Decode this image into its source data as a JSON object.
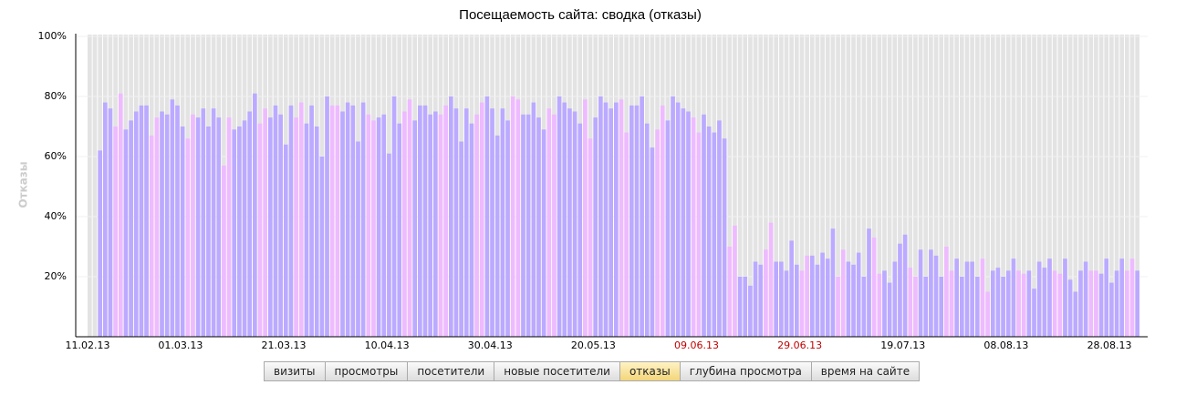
{
  "chart_data": {
    "type": "bar",
    "title": "Посещаемость сайта: сводка (отказы)",
    "y_label": "Отказы",
    "categories": [
      "11.02.13",
      null,
      null,
      null,
      null,
      null,
      null,
      null,
      null,
      null,
      null,
      null,
      null,
      null,
      null,
      null,
      null,
      null,
      "01.03.13",
      null,
      null,
      null,
      null,
      null,
      null,
      null,
      null,
      null,
      null,
      null,
      null,
      null,
      null,
      null,
      null,
      null,
      null,
      null,
      "21.03.13",
      null,
      null,
      null,
      null,
      null,
      null,
      null,
      null,
      null,
      null,
      null,
      null,
      null,
      null,
      null,
      null,
      null,
      null,
      null,
      "10.04.13",
      null,
      null,
      null,
      null,
      null,
      null,
      null,
      null,
      null,
      null,
      null,
      null,
      null,
      null,
      null,
      null,
      null,
      null,
      null,
      "30.04.13",
      null,
      null,
      null,
      null,
      null,
      null,
      null,
      null,
      null,
      null,
      null,
      null,
      null,
      null,
      null,
      null,
      null,
      null,
      null,
      "20.05.13",
      null,
      null,
      null,
      null,
      null,
      null,
      null,
      null,
      null,
      null,
      null,
      null,
      null,
      null,
      null,
      null,
      null,
      null,
      null,
      "09.06.13",
      null,
      null,
      null,
      null,
      null,
      null,
      null,
      null,
      null,
      null,
      null,
      null,
      null,
      null,
      null,
      null,
      null,
      null,
      null,
      "29.06.13",
      null,
      null,
      null,
      null,
      null,
      null,
      null,
      null,
      null,
      null,
      null,
      null,
      null,
      null,
      null,
      null,
      null,
      null,
      null,
      "19.07.13",
      null,
      null,
      null,
      null,
      null,
      null,
      null,
      null,
      null,
      null,
      null,
      null,
      null,
      null,
      null,
      null,
      null,
      null,
      null,
      "08.08.13",
      null,
      null,
      null,
      null,
      null,
      null,
      null,
      null,
      null,
      null,
      null,
      null,
      null,
      null,
      null,
      null,
      null,
      null,
      null,
      "28.08.13",
      null,
      null,
      null,
      null,
      null
    ],
    "values": [
      null,
      null,
      62,
      78,
      76,
      70,
      81,
      69,
      72,
      75,
      77,
      77,
      67,
      73,
      75,
      74,
      79,
      77,
      70,
      66,
      74,
      73,
      76,
      70,
      76,
      73,
      57,
      73,
      69,
      70,
      72,
      75,
      81,
      71,
      76,
      73,
      77,
      74,
      64,
      77,
      73,
      78,
      71,
      77,
      70,
      60,
      80,
      77,
      77,
      75,
      78,
      77,
      65,
      78,
      74,
      72,
      73,
      74,
      61,
      80,
      71,
      75,
      79,
      72,
      77,
      77,
      74,
      75,
      74,
      77,
      80,
      76,
      65,
      76,
      71,
      74,
      78,
      80,
      76,
      67,
      76,
      72,
      80,
      79,
      74,
      74,
      78,
      73,
      69,
      76,
      74,
      80,
      78,
      76,
      75,
      71,
      79,
      66,
      73,
      80,
      78,
      76,
      78,
      79,
      68,
      77,
      77,
      80,
      71,
      63,
      69,
      77,
      72,
      80,
      78,
      76,
      75,
      73,
      68,
      74,
      70,
      68,
      72,
      66,
      30,
      37,
      20,
      20,
      17,
      25,
      24,
      29,
      38,
      25,
      25,
      22,
      32,
      24,
      22,
      27,
      27,
      24,
      28,
      26,
      36,
      20,
      29,
      25,
      24,
      28,
      20,
      36,
      33,
      21,
      22,
      18,
      25,
      31,
      34,
      23,
      20,
      29,
      20,
      29,
      27,
      20,
      30,
      22,
      26,
      20,
      25,
      25,
      20,
      26,
      15,
      22,
      23,
      20,
      22,
      26,
      22,
      21,
      22,
      16,
      25,
      23,
      26,
      22,
      21,
      26,
      19,
      15,
      22,
      25,
      22,
      22,
      21,
      26,
      18,
      22,
      26,
      22,
      26,
      22
    ],
    "colors": [
      "#baf",
      "#baf",
      "#baf",
      "#baf",
      "#baf",
      "#ebf",
      "#ebf",
      "#baf",
      "#baf",
      "#baf",
      "#baf",
      "#baf",
      "#ebf",
      "#ebf",
      "#baf",
      "#baf",
      "#baf",
      "#baf",
      "#baf",
      "#ebf",
      "#ebf",
      "#baf",
      "#baf",
      "#baf",
      "#baf",
      "#baf",
      "#ebf",
      "#ebf",
      "#baf",
      "#baf",
      "#baf",
      "#baf",
      "#baf",
      "#ebf",
      "#ebf",
      "#baf",
      "#baf",
      "#baf",
      "#baf",
      "#baf",
      "#ebf",
      "#ebf",
      "#baf",
      "#baf",
      "#baf",
      "#baf",
      "#baf",
      "#ebf",
      "#ebf",
      "#baf",
      "#baf",
      "#baf",
      "#baf",
      "#baf",
      "#ebf",
      "#ebf",
      "#baf",
      "#baf",
      "#baf",
      "#baf",
      "#baf",
      "#ebf",
      "#ebf",
      "#baf",
      "#baf",
      "#baf",
      "#baf",
      "#baf",
      "#ebf",
      "#ebf",
      "#baf",
      "#baf",
      "#baf",
      "#baf",
      "#baf",
      "#ebf",
      "#ebf",
      "#baf",
      "#baf",
      "#baf",
      "#baf",
      "#baf",
      "#ebf",
      "#ebf",
      "#baf",
      "#baf",
      "#baf",
      "#baf",
      "#baf",
      "#ebf",
      "#ebf",
      "#baf",
      "#baf",
      "#baf",
      "#baf",
      "#baf",
      "#ebf",
      "#ebf",
      "#baf",
      "#baf",
      "#baf",
      "#baf",
      "#baf",
      "#ebf",
      "#ebf",
      "#baf",
      "#baf",
      "#baf",
      "#baf",
      "#baf",
      "#ebf",
      "#ebf",
      "#baf",
      "#baf",
      "#baf",
      "#baf",
      "#baf",
      "#ebf",
      "#ebf",
      "#baf",
      "#baf",
      "#baf",
      "#baf",
      "#baf",
      "#ebf",
      "#ebf",
      "#baf",
      "#baf",
      "#baf",
      "#baf",
      "#baf",
      "#ebf",
      "#ebf",
      "#baf",
      "#baf",
      "#baf",
      "#baf",
      "#baf",
      "#ebf",
      "#ebf",
      "#baf",
      "#baf",
      "#baf",
      "#baf",
      "#baf",
      "#ebf",
      "#ebf",
      "#baf",
      "#baf",
      "#baf",
      "#baf",
      "#baf",
      "#ebf",
      "#ebf",
      "#baf",
      "#baf",
      "#baf",
      "#baf",
      "#baf",
      "#ebf",
      "#ebf",
      "#baf",
      "#baf",
      "#baf",
      "#baf",
      "#baf",
      "#ebf",
      "#ebf",
      "#baf",
      "#baf",
      "#baf",
      "#baf",
      "#baf",
      "#ebf",
      "#ebf",
      "#baf",
      "#baf",
      "#baf",
      "#baf",
      "#baf",
      "#ebf",
      "#ebf",
      "#baf",
      "#baf",
      "#baf",
      "#baf",
      "#baf",
      "#ebf",
      "#ebf",
      "#baf",
      "#baf",
      "#baf",
      "#baf",
      "#baf",
      "#ebf",
      "#ebf",
      "#baf",
      "#baf",
      "#baf",
      "#baf",
      "#baf",
      "#ebf",
      "#ebf",
      "#baf"
    ],
    "label_highlight": {
      "color": "#c00000",
      "when_bar_color": "#ebf"
    },
    "ylim": [
      0,
      100
    ],
    "yticks": [
      {
        "value": 20,
        "label": "20%"
      },
      {
        "value": 40,
        "label": "40%"
      },
      {
        "value": 60,
        "label": "60%"
      },
      {
        "value": 80,
        "label": "80%"
      },
      {
        "value": 100,
        "label": "100%"
      }
    ],
    "grid": true
  },
  "buttons": [
    {
      "label": "визиты"
    },
    {
      "label": "просмотры"
    },
    {
      "label": "посетители"
    },
    {
      "label": "новые посетители"
    },
    {
      "label": "отказы",
      "active": true
    },
    {
      "label": "глубина просмотра"
    },
    {
      "label": "время на сайте"
    }
  ]
}
